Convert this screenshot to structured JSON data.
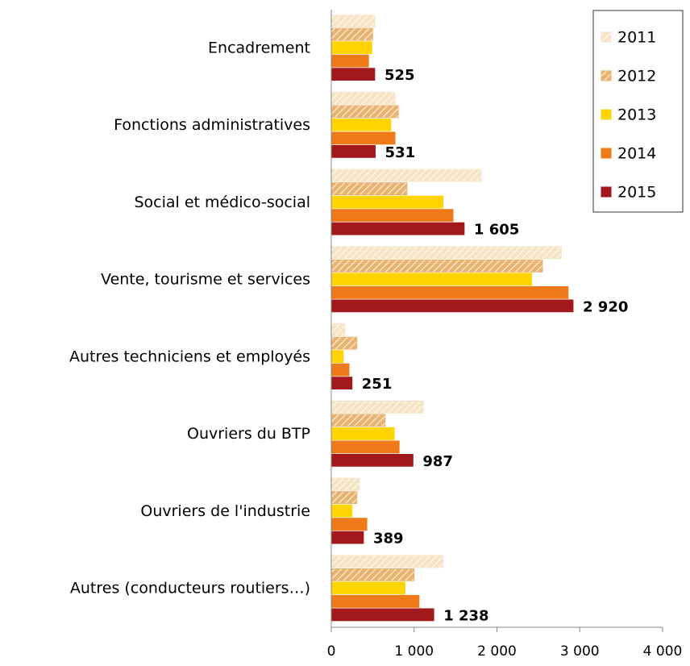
{
  "chart_data": {
    "type": "hbar",
    "categories": [
      "Encadrement",
      "Fonctions administratives",
      "Social et médico-social",
      "Vente, tourisme et services",
      "Autres techniciens et employés",
      "Ouvriers du BTP",
      "Ouvriers de l'industrie",
      "Autres (conducteurs  routiers…)"
    ],
    "series": [
      {
        "name": "2011",
        "color": "#f6e4c4",
        "hatch": true,
        "values": [
          525,
          770,
          1810,
          2780,
          165,
          1110,
          340,
          1350
        ]
      },
      {
        "name": "2012",
        "color": "#e9b26e",
        "hatch": true,
        "values": [
          500,
          810,
          915,
          2550,
          310,
          650,
          310,
          1000
        ]
      },
      {
        "name": "2013",
        "color": "#ffd400",
        "hatch": false,
        "values": [
          490,
          720,
          1350,
          2420,
          145,
          760,
          250,
          890
        ]
      },
      {
        "name": "2014",
        "color": "#ef7a1a",
        "hatch": false,
        "values": [
          450,
          770,
          1470,
          2860,
          215,
          820,
          430,
          1060
        ]
      },
      {
        "name": "2015",
        "color": "#a3191b",
        "hatch": false,
        "values": [
          525,
          531,
          1605,
          2920,
          251,
          987,
          389,
          1238
        ],
        "value_labels": [
          "525",
          "531",
          "1 605",
          "2 920",
          "251",
          "987",
          "389",
          "1 238"
        ]
      }
    ],
    "xlim": [
      0,
      4000
    ],
    "xticks": [
      0,
      {
        "value": 1000,
        "label": "1 000"
      },
      {
        "value": 2000,
        "label": "2 000"
      },
      {
        "value": 3000,
        "label": "3 000"
      },
      {
        "value": 4000,
        "label": "4 000"
      }
    ],
    "legend": "upper right",
    "grid": false
  }
}
